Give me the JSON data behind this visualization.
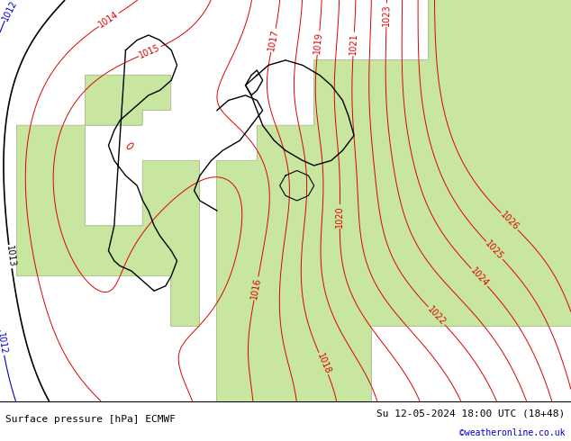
{
  "title_left": "Surface pressure [hPa] ECMWF",
  "title_right": "Su 12-05-2024 18:00 UTC (18+48)",
  "credit": "©weatheronline.co.uk",
  "credit_color": "#0000cc",
  "background_land_green": "#c8e6a0",
  "background_sea_gray": "#c0c0c8",
  "contour_red_color": "#dd0000",
  "contour_black_color": "#000000",
  "contour_blue_color": "#0000cc",
  "contour_gray_color": "#888888",
  "border_color": "#000000",
  "figsize": [
    6.34,
    4.9
  ],
  "dpi": 100,
  "bottom_bar_color": "#b0b0b0",
  "font_size_labels": 7,
  "font_size_bottom": 8
}
